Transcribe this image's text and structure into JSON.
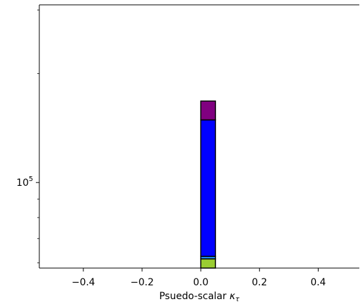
{
  "chart_data": {
    "type": "bar",
    "stacked": true,
    "xlabel": "Psuedo-scalar",
    "xlabel_symbol": "κ",
    "xlabel_subscript": "τ",
    "xlim": [
      -0.55,
      0.54
    ],
    "y_scale": "log",
    "ylim": [
      58000,
      310000
    ],
    "x_ticks": [
      {
        "value": -0.4,
        "label": "−0.4"
      },
      {
        "value": -0.2,
        "label": "−0.2"
      },
      {
        "value": 0.0,
        "label": "0.0"
      },
      {
        "value": 0.2,
        "label": "0.2"
      },
      {
        "value": 0.4,
        "label": "0.4"
      }
    ],
    "y_major_ticks": [
      {
        "value": 100000,
        "base": "10",
        "exponent": "5"
      }
    ],
    "y_minor_ticks": [
      60000,
      70000,
      80000,
      90000,
      200000,
      300000
    ],
    "bin": {
      "x0": 0.0,
      "x1": 0.05
    },
    "series": [
      {
        "color": "#9acd32",
        "bottom": 58000,
        "top": 61500
      },
      {
        "color": "#1e90ff",
        "bottom": 61500,
        "top": 62500
      },
      {
        "color": "#0000ff",
        "bottom": 62500,
        "top": 149000
      },
      {
        "color": "#800080",
        "bottom": 149000,
        "top": 168000
      }
    ]
  }
}
